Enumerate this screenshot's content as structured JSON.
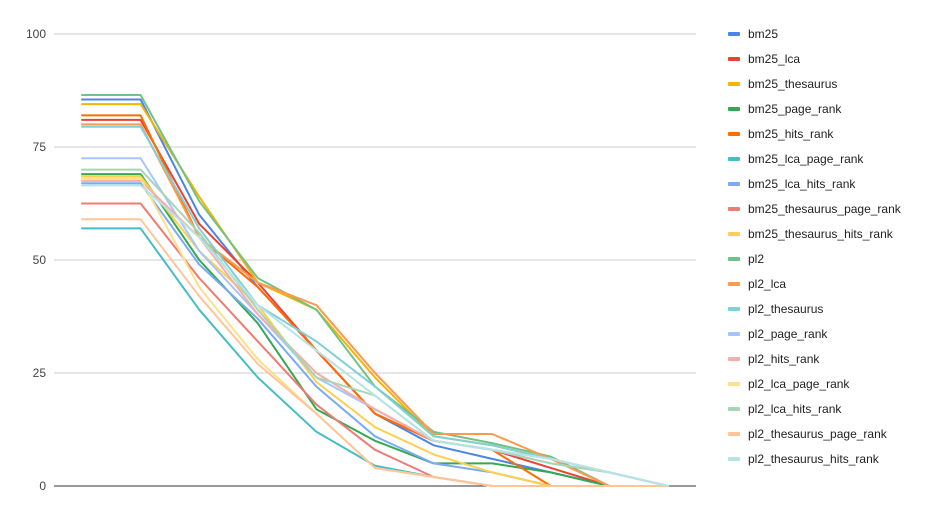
{
  "chart_data": {
    "type": "line",
    "title": "",
    "xlabel": "",
    "ylabel": "",
    "ylim": [
      0,
      100
    ],
    "yticks": [
      0,
      25,
      50,
      75,
      100
    ],
    "grid": true,
    "legend_position": "right",
    "x": [
      1,
      2,
      3,
      4,
      5,
      6,
      7,
      8,
      9,
      10,
      11
    ],
    "series": [
      {
        "name": "bm25",
        "color": "#4a86e8",
        "values": [
          85.5,
          85.5,
          60,
          44,
          30,
          16,
          9,
          6,
          3,
          0,
          0
        ]
      },
      {
        "name": "bm25_lca",
        "color": "#ea4335",
        "values": [
          81,
          81,
          58,
          45,
          30,
          16,
          10,
          8,
          4,
          0,
          0
        ]
      },
      {
        "name": "bm25_thesaurus",
        "color": "#f4b400",
        "values": [
          84.5,
          84.5,
          64,
          45,
          39,
          24,
          11,
          9,
          6,
          0,
          0
        ]
      },
      {
        "name": "bm25_page_rank",
        "color": "#34a853",
        "values": [
          69,
          69,
          50,
          36,
          17,
          10,
          5,
          5,
          3,
          0,
          0
        ]
      },
      {
        "name": "bm25_hits_rank",
        "color": "#ff6d01",
        "values": [
          82,
          82,
          55,
          44,
          30,
          16,
          10,
          8,
          0,
          0,
          0
        ]
      },
      {
        "name": "bm25_lca_page_rank",
        "color": "#46bdc6",
        "values": [
          57,
          57,
          39,
          24,
          12,
          4.5,
          2,
          0,
          0,
          0,
          0
        ]
      },
      {
        "name": "bm25_lca_hits_rank",
        "color": "#7baaf7",
        "values": [
          67,
          67,
          49,
          37,
          22,
          11,
          5,
          3,
          0,
          0,
          0
        ]
      },
      {
        "name": "bm25_thesaurus_page_rank",
        "color": "#f07b72",
        "values": [
          62.5,
          62.5,
          46,
          32,
          18,
          8,
          2,
          0,
          0,
          0,
          0
        ]
      },
      {
        "name": "bm25_thesaurus_hits_rank",
        "color": "#fcd04f",
        "values": [
          68.5,
          68.5,
          52,
          40,
          23,
          13,
          7,
          3,
          0,
          0,
          0
        ]
      },
      {
        "name": "pl2",
        "color": "#71c287",
        "values": [
          86.5,
          86.5,
          63,
          46,
          39,
          22,
          12,
          9.5,
          6.5,
          0,
          0
        ]
      },
      {
        "name": "pl2_lca",
        "color": "#ff994d",
        "values": [
          80,
          80,
          55,
          45,
          40,
          25,
          11.5,
          11.5,
          6,
          0,
          0
        ]
      },
      {
        "name": "pl2_thesaurus",
        "color": "#7ed1d7",
        "values": [
          79.5,
          79.5,
          57,
          40,
          32,
          22,
          11,
          9,
          6,
          3,
          0
        ]
      },
      {
        "name": "pl2_page_rank",
        "color": "#a6c5fa",
        "values": [
          72.5,
          72.5,
          52,
          38,
          24,
          17,
          10,
          8,
          5,
          3,
          0
        ]
      },
      {
        "name": "pl2_hits_rank",
        "color": "#f6aea9",
        "values": [
          67.5,
          67.5,
          55,
          38,
          25,
          17,
          10,
          8,
          6,
          3,
          0
        ]
      },
      {
        "name": "pl2_lca_page_rank",
        "color": "#fde089",
        "values": [
          68,
          68,
          44,
          28,
          16,
          4,
          2,
          0,
          0,
          0,
          0
        ]
      },
      {
        "name": "pl2_lca_hits_rank",
        "color": "#a8d5b5",
        "values": [
          70,
          70,
          56,
          39,
          24,
          20,
          10,
          8,
          5,
          3,
          0
        ]
      },
      {
        "name": "pl2_thesaurus_page_rank",
        "color": "#ffc599",
        "values": [
          59,
          59,
          42,
          27,
          16,
          4,
          2,
          0,
          0,
          0,
          0
        ]
      },
      {
        "name": "pl2_thesaurus_hits_rank",
        "color": "#b4e4e7",
        "values": [
          66.5,
          66.5,
          55,
          40,
          30,
          20,
          10,
          8,
          6,
          3,
          0
        ]
      }
    ]
  }
}
